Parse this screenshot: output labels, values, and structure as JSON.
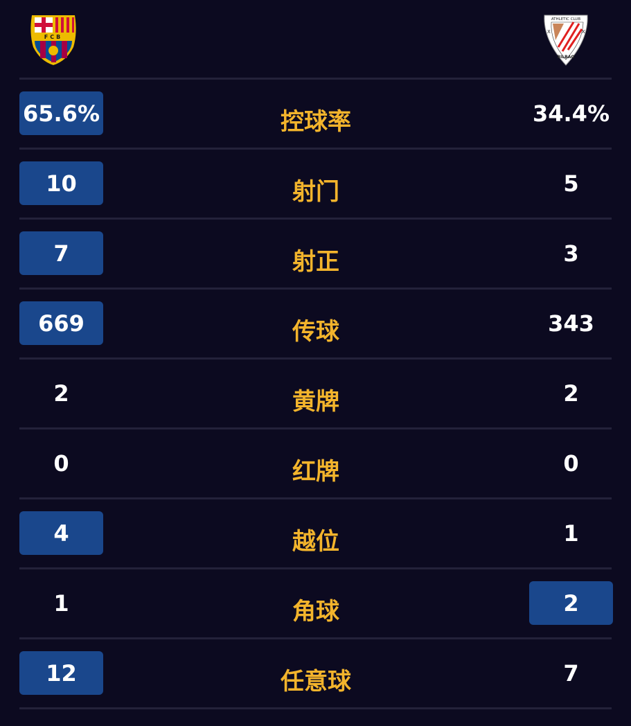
{
  "teams": {
    "home": {
      "name_on_crest": "FCB",
      "colors": [
        "#a50044",
        "#004d98",
        "#edbb00"
      ]
    },
    "away": {
      "name_on_crest": "ATHLETIC CLUB",
      "crest_city": "BILBAO",
      "colors": [
        "#ee2523",
        "#ffffff"
      ]
    }
  },
  "colors": {
    "background": "#0c0a20",
    "highlight": "#1a478c",
    "label": "#f3b42c",
    "value": "#ffffff"
  },
  "stats": [
    {
      "label": "控球率",
      "home": "65.6%",
      "away": "34.4%",
      "highlight": "home"
    },
    {
      "label": "射门",
      "home": "10",
      "away": "5",
      "highlight": "home"
    },
    {
      "label": "射正",
      "home": "7",
      "away": "3",
      "highlight": "home"
    },
    {
      "label": "传球",
      "home": "669",
      "away": "343",
      "highlight": "home"
    },
    {
      "label": "黄牌",
      "home": "2",
      "away": "2",
      "highlight": "none"
    },
    {
      "label": "红牌",
      "home": "0",
      "away": "0",
      "highlight": "none"
    },
    {
      "label": "越位",
      "home": "4",
      "away": "1",
      "highlight": "home"
    },
    {
      "label": "角球",
      "home": "1",
      "away": "2",
      "highlight": "away"
    },
    {
      "label": "任意球",
      "home": "12",
      "away": "7",
      "highlight": "home"
    }
  ]
}
